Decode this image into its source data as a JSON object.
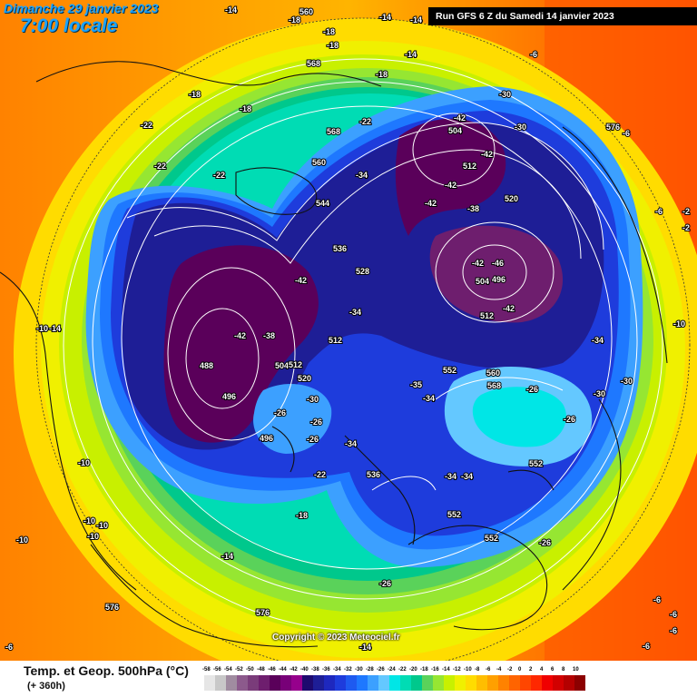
{
  "header": {
    "date_label": "Dimanche 29 janvier 2023",
    "time_label": "7:00 locale",
    "run_label": "Run GFS 6 Z du Samedi 14 janvier 2023"
  },
  "copyright": "Copyright © 2023 Meteociel.fr",
  "legend": {
    "title": "Temp. et Geop. 500hPa (°C)",
    "subtitle": "(+ 360h)",
    "scale": [
      {
        "value": "-58",
        "color": "#e6e6e6"
      },
      {
        "value": "-56",
        "color": "#c8c8c8"
      },
      {
        "value": "-54",
        "color": "#a08ca0"
      },
      {
        "value": "-52",
        "color": "#8c5a8c"
      },
      {
        "value": "-50",
        "color": "#7a3c7a"
      },
      {
        "value": "-48",
        "color": "#6e1e6e"
      },
      {
        "value": "-46",
        "color": "#5a005a"
      },
      {
        "value": "-44",
        "color": "#780078"
      },
      {
        "value": "-42",
        "color": "#96008c"
      },
      {
        "value": "-40",
        "color": "#1e0a6e"
      },
      {
        "value": "-38",
        "color": "#1e1e96"
      },
      {
        "value": "-36",
        "color": "#1e28be"
      },
      {
        "value": "-34",
        "color": "#1e3cdc"
      },
      {
        "value": "-32",
        "color": "#1e5af0"
      },
      {
        "value": "-30",
        "color": "#1e78ff"
      },
      {
        "value": "-28",
        "color": "#3ca0ff"
      },
      {
        "value": "-26",
        "color": "#64c8ff"
      },
      {
        "value": "-24",
        "color": "#00e6e6"
      },
      {
        "value": "-22",
        "color": "#00dcb4"
      },
      {
        "value": "-20",
        "color": "#00c88c"
      },
      {
        "value": "-18",
        "color": "#5ad25a"
      },
      {
        "value": "-16",
        "color": "#96e632"
      },
      {
        "value": "-14",
        "color": "#c8f000"
      },
      {
        "value": "-12",
        "color": "#f0f000"
      },
      {
        "value": "-10",
        "color": "#ffdc00"
      },
      {
        "value": "-8",
        "color": "#ffbe00"
      },
      {
        "value": "-6",
        "color": "#ffa000"
      },
      {
        "value": "-4",
        "color": "#ff8200"
      },
      {
        "value": "-2",
        "color": "#ff6400"
      },
      {
        "value": "0",
        "color": "#ff4600"
      },
      {
        "value": "2",
        "color": "#ff2800"
      },
      {
        "value": "4",
        "color": "#f00000"
      },
      {
        "value": "6",
        "color": "#d20000"
      },
      {
        "value": "8",
        "color": "#b40000"
      },
      {
        "value": "10",
        "color": "#8c0000"
      }
    ]
  },
  "map_labels": {
    "temperature": [
      "-14",
      "-14",
      "-18",
      "-18",
      "-18",
      "-18",
      "-14",
      "-14",
      "-6",
      "-18",
      "-18",
      "-22",
      "-22",
      "-22",
      "-22",
      "-30",
      "-30",
      "-6",
      "-42",
      "-42",
      "-42",
      "-34",
      "-42",
      "-38",
      "-42",
      "-46",
      "-42",
      "-42",
      "-38",
      "-34",
      "-42",
      "-34",
      "-30",
      "-26",
      "-26",
      "-26",
      "-30",
      "-30",
      "-35",
      "-34",
      "-26",
      "-26",
      "-34",
      "-34",
      "-34",
      "-22",
      "-18",
      "-14",
      "-10",
      "-10",
      "-10",
      "-10",
      "-10",
      "-14",
      "-6",
      "-26",
      "-10",
      "-26",
      "-14",
      "-6",
      "-6",
      "-6",
      "-2",
      "-2",
      "-6",
      "-6",
      "-10"
    ],
    "geopotential": [
      "560",
      "568",
      "576",
      "568",
      "560",
      "544",
      "536",
      "528",
      "504",
      "512",
      "520",
      "504",
      "496",
      "512",
      "488",
      "496",
      "504",
      "512",
      "520",
      "512",
      "552",
      "560",
      "568",
      "536",
      "552",
      "552",
      "552",
      "496",
      "496",
      "576",
      "576"
    ]
  }
}
